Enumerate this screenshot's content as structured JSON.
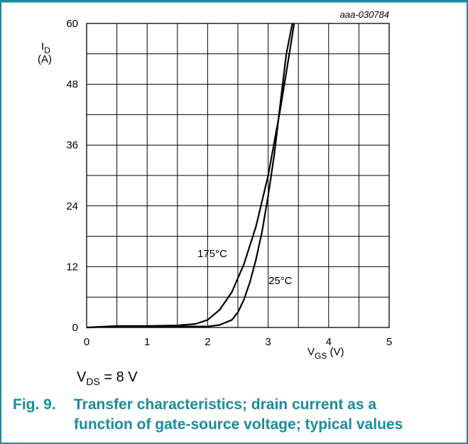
{
  "figure": {
    "id": "aaa-030784",
    "condition_main": "V",
    "condition_sub": "DS",
    "condition_value": " = 8 V",
    "caption_number": "Fig. 9.",
    "caption_line1": "Transfer characteristics; drain current as a",
    "caption_line2": "function of gate-source voltage; typical values"
  },
  "chart_data": {
    "type": "line",
    "title": "",
    "xlabel_main": "V",
    "xlabel_sub": "GS",
    "xlabel_unit": " (V)",
    "ylabel_main": "I",
    "ylabel_sub": "D",
    "ylabel_unit": "(A)",
    "xlim": [
      0,
      5
    ],
    "ylim": [
      0,
      60
    ],
    "x_ticks": [
      0,
      1,
      2,
      3,
      4,
      5
    ],
    "y_ticks": [
      0,
      12,
      24,
      36,
      48,
      60
    ],
    "grid": true,
    "series": [
      {
        "name": "175°C",
        "points": [
          [
            0,
            0
          ],
          [
            0.5,
            0.3
          ],
          [
            1.0,
            0.3
          ],
          [
            1.5,
            0.4
          ],
          [
            1.8,
            0.7
          ],
          [
            2.0,
            1.5
          ],
          [
            2.2,
            3.5
          ],
          [
            2.4,
            7
          ],
          [
            2.6,
            12.5
          ],
          [
            2.8,
            20
          ],
          [
            3.0,
            30
          ],
          [
            3.2,
            43
          ],
          [
            3.35,
            54
          ],
          [
            3.43,
            60
          ]
        ]
      },
      {
        "name": "25°C",
        "points": [
          [
            0,
            0
          ],
          [
            0.5,
            0.2
          ],
          [
            1.0,
            0.2
          ],
          [
            1.5,
            0.2
          ],
          [
            2.0,
            0.2
          ],
          [
            2.2,
            0.5
          ],
          [
            2.4,
            1.5
          ],
          [
            2.5,
            3
          ],
          [
            2.6,
            5.5
          ],
          [
            2.7,
            9
          ],
          [
            2.8,
            13.5
          ],
          [
            2.9,
            19
          ],
          [
            3.0,
            26
          ],
          [
            3.1,
            34
          ],
          [
            3.2,
            44
          ],
          [
            3.3,
            54
          ],
          [
            3.4,
            60
          ]
        ]
      }
    ],
    "series_labels": [
      "175°C",
      "25°C"
    ]
  }
}
